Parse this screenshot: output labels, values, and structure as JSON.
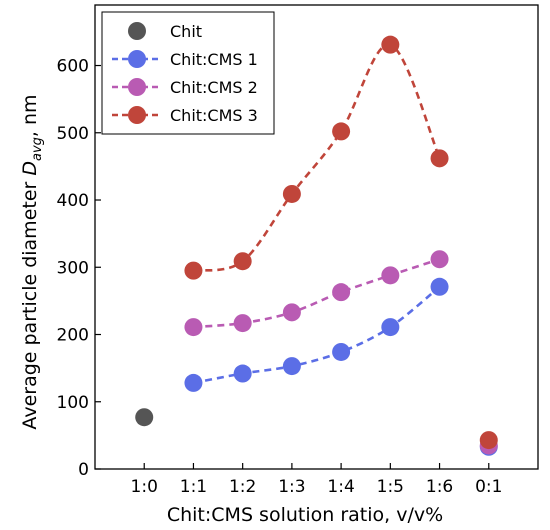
{
  "chart_data": {
    "type": "line",
    "xlabel": "Chit:CMS solution ratio, v/v%",
    "ylabel_main": "Average particle diameter ",
    "ylabel_sym": "D",
    "ylabel_sub": "avg",
    "ylabel_unit": ", nm",
    "categories": [
      "1:0",
      "1:1",
      "1:2",
      "1:3",
      "1:4",
      "1:5",
      "1:6",
      "0:1"
    ],
    "ylim": [
      0,
      690
    ],
    "yticks": [
      0,
      100,
      200,
      300,
      400,
      500,
      600
    ],
    "legend_position": "top-left",
    "series": [
      {
        "name": "Chit",
        "color": "#555555",
        "values": [
          77,
          null,
          null,
          null,
          null,
          null,
          null,
          null
        ],
        "dashed": false
      },
      {
        "name": "Chit:CMS 1",
        "color": "#5b6ee6",
        "values": [
          null,
          128,
          142,
          153,
          174,
          211,
          271,
          33
        ],
        "dashed": true,
        "curve_range": [
          1,
          6
        ]
      },
      {
        "name": "Chit:CMS 2",
        "color": "#b95bb3",
        "values": [
          null,
          211,
          217,
          233,
          263,
          288,
          312,
          35
        ],
        "dashed": true,
        "curve_range": [
          1,
          6
        ]
      },
      {
        "name": "Chit:CMS 3",
        "color": "#c0453a",
        "values": [
          null,
          295,
          309,
          409,
          502,
          631,
          462,
          43
        ],
        "dashed": true,
        "curve_range": [
          1,
          6
        ]
      }
    ]
  }
}
